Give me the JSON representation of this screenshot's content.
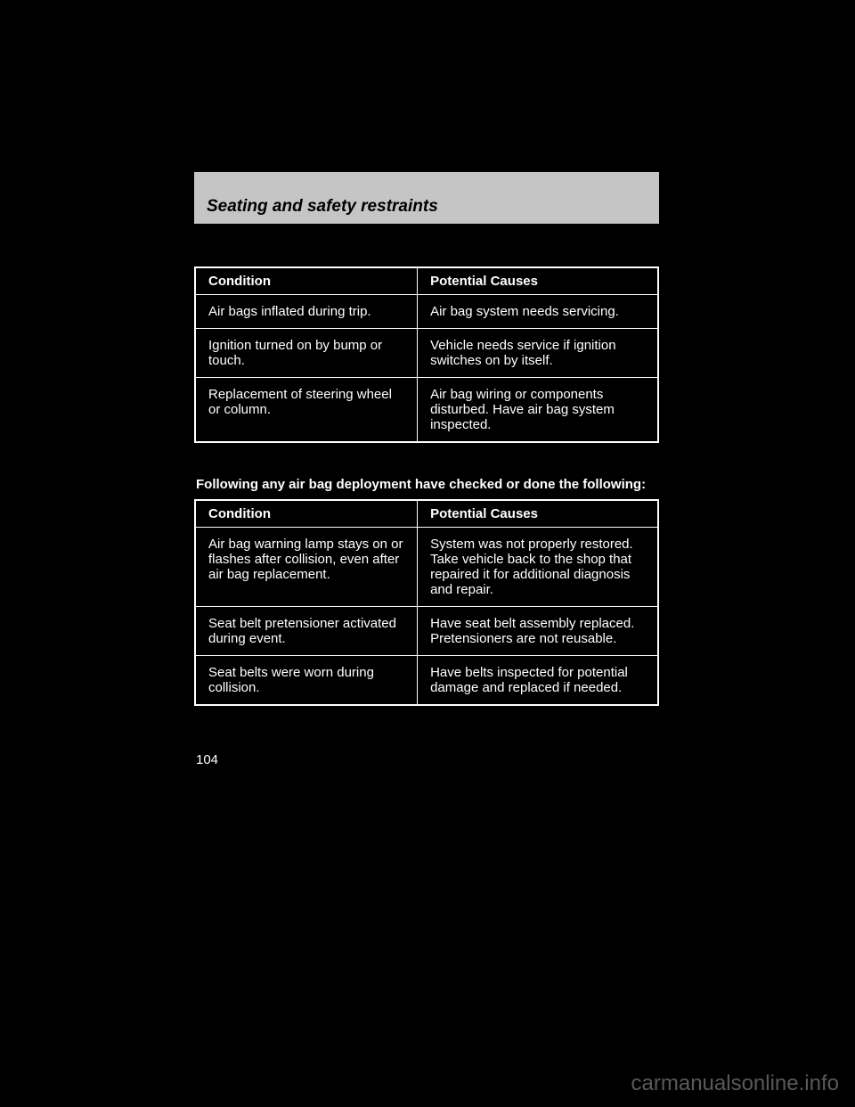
{
  "header": {
    "title": "Seating and safety restraints"
  },
  "table1": {
    "columns": [
      "Condition",
      "Potential Causes"
    ],
    "rows": [
      [
        "Air bags inflated during trip.",
        "Air bag system needs servicing."
      ],
      [
        "Ignition turned on by bump or touch.",
        "Vehicle needs service if ignition switches on by itself."
      ],
      [
        "Replacement of steering wheel or column.",
        "Air bag wiring or components disturbed. Have air bag system inspected."
      ]
    ]
  },
  "section_heading": "Following any air bag deployment have checked or done\nthe following:",
  "table2": {
    "columns": [
      "Condition",
      "Potential Causes"
    ],
    "rows": [
      [
        "Air bag warning lamp stays on or flashes after collision, even after air bag replacement.",
        "System was not properly restored. Take vehicle back to the shop that repaired it for additional diagnosis and repair."
      ],
      [
        "Seat belt pretensioner activated during event.",
        "Have seat belt assembly replaced. Pretensioners are not reusable."
      ],
      [
        "Seat belts were worn during collision.",
        "Have belts inspected for potential damage and replaced if needed."
      ]
    ]
  },
  "page_number": "104",
  "watermark": "carmanualsonline.info"
}
